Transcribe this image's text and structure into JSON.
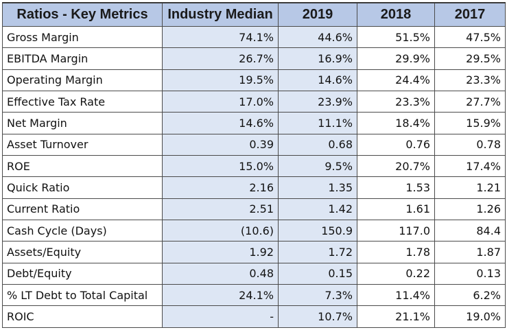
{
  "table": {
    "headers": [
      "Ratios - Key Metrics",
      "Industry Median",
      "2019",
      "2018",
      "2017"
    ],
    "rows": [
      [
        "Gross Margin",
        "74.1%",
        "44.6%",
        "51.5%",
        "47.5%"
      ],
      [
        "EBITDA Margin",
        "26.7%",
        "16.9%",
        "29.9%",
        "29.5%"
      ],
      [
        "Operating Margin",
        "19.5%",
        "14.6%",
        "24.4%",
        "23.3%"
      ],
      [
        "Effective Tax Rate",
        "17.0%",
        "23.9%",
        "23.3%",
        "27.7%"
      ],
      [
        "Net Margin",
        "14.6%",
        "11.1%",
        "18.4%",
        "15.9%"
      ],
      [
        "Asset Turnover",
        "0.39",
        "0.68",
        "0.76",
        "0.78"
      ],
      [
        "ROE",
        "15.0%",
        "9.5%",
        "20.7%",
        "17.4%"
      ],
      [
        "Quick Ratio",
        "2.16",
        "1.35",
        "1.53",
        "1.21"
      ],
      [
        "Current Ratio",
        "2.51",
        "1.42",
        "1.61",
        "1.26"
      ],
      [
        "Cash Cycle (Days)",
        "(10.6)",
        "150.9",
        "117.0",
        "84.4"
      ],
      [
        "Assets/Equity",
        "1.92",
        "1.72",
        "1.78",
        "1.87"
      ],
      [
        "Debt/Equity",
        "0.48",
        "0.15",
        "0.22",
        "0.13"
      ],
      [
        "% LT Debt to Total Capital",
        "24.1%",
        "7.3%",
        "11.4%",
        "6.2%"
      ],
      [
        "ROIC",
        "-",
        "10.7%",
        "21.1%",
        "19.0%"
      ]
    ]
  },
  "colors": {
    "header_bg": "#b7c8e6",
    "shaded_col_bg": "#dde6f4",
    "border": "#4a4a4a"
  }
}
